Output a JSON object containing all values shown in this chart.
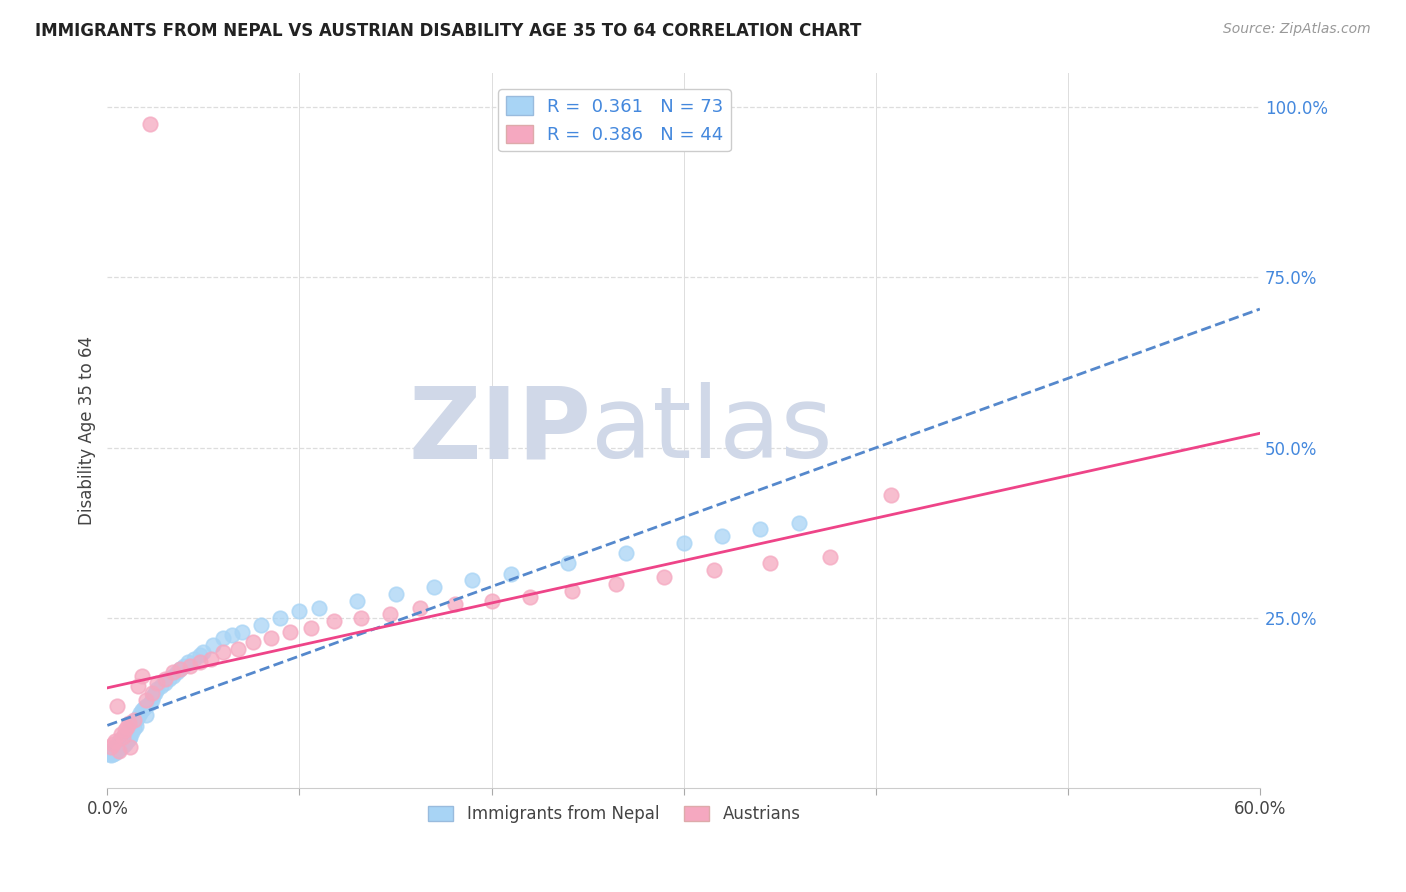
{
  "title": "IMMIGRANTS FROM NEPAL VS AUSTRIAN DISABILITY AGE 35 TO 64 CORRELATION CHART",
  "source": "Source: ZipAtlas.com",
  "ylabel": "Disability Age 35 to 64",
  "xmin": 0.0,
  "xmax": 0.6,
  "ymin": 0.0,
  "ymax": 1.05,
  "legend_label1": "R =  0.361   N = 73",
  "legend_label2": "R =  0.386   N = 44",
  "scatter_color1": "#A8D4F5",
  "scatter_color2": "#F5A8C0",
  "trendline_color1": "#5588CC",
  "trendline_color2": "#EE4488",
  "watermark_color": "#D0D8E8",
  "background_color": "#FFFFFF",
  "grid_color": "#DDDDDD",
  "nepal_x": [
    0.001,
    0.002,
    0.002,
    0.003,
    0.003,
    0.003,
    0.004,
    0.004,
    0.004,
    0.005,
    0.005,
    0.005,
    0.006,
    0.006,
    0.006,
    0.007,
    0.007,
    0.008,
    0.008,
    0.009,
    0.009,
    0.01,
    0.01,
    0.011,
    0.011,
    0.012,
    0.012,
    0.013,
    0.013,
    0.014,
    0.015,
    0.015,
    0.016,
    0.017,
    0.018,
    0.019,
    0.02,
    0.02,
    0.022,
    0.023,
    0.024,
    0.025,
    0.026,
    0.028,
    0.03,
    0.032,
    0.034,
    0.036,
    0.038,
    0.04,
    0.042,
    0.045,
    0.048,
    0.05,
    0.055,
    0.06,
    0.065,
    0.07,
    0.08,
    0.09,
    0.1,
    0.11,
    0.13,
    0.15,
    0.17,
    0.19,
    0.21,
    0.24,
    0.27,
    0.3,
    0.32,
    0.34,
    0.36
  ],
  "nepal_y": [
    0.05,
    0.048,
    0.052,
    0.055,
    0.05,
    0.058,
    0.052,
    0.057,
    0.06,
    0.055,
    0.06,
    0.062,
    0.058,
    0.065,
    0.07,
    0.06,
    0.068,
    0.062,
    0.075,
    0.065,
    0.078,
    0.07,
    0.08,
    0.072,
    0.085,
    0.075,
    0.09,
    0.082,
    0.095,
    0.088,
    0.092,
    0.1,
    0.105,
    0.11,
    0.115,
    0.118,
    0.12,
    0.108,
    0.125,
    0.13,
    0.135,
    0.14,
    0.145,
    0.15,
    0.155,
    0.16,
    0.165,
    0.17,
    0.175,
    0.18,
    0.185,
    0.19,
    0.195,
    0.2,
    0.21,
    0.22,
    0.225,
    0.23,
    0.24,
    0.25,
    0.26,
    0.265,
    0.275,
    0.285,
    0.295,
    0.305,
    0.315,
    0.33,
    0.345,
    0.36,
    0.37,
    0.38,
    0.39
  ],
  "austria_x": [
    0.002,
    0.003,
    0.004,
    0.005,
    0.006,
    0.007,
    0.008,
    0.009,
    0.01,
    0.011,
    0.012,
    0.014,
    0.016,
    0.018,
    0.02,
    0.023,
    0.026,
    0.03,
    0.034,
    0.038,
    0.043,
    0.048,
    0.054,
    0.06,
    0.068,
    0.076,
    0.085,
    0.095,
    0.106,
    0.118,
    0.132,
    0.147,
    0.163,
    0.181,
    0.2,
    0.22,
    0.242,
    0.265,
    0.29,
    0.316,
    0.345,
    0.376,
    0.408,
    0.022
  ],
  "austria_y": [
    0.06,
    0.065,
    0.07,
    0.12,
    0.055,
    0.08,
    0.075,
    0.085,
    0.09,
    0.095,
    0.06,
    0.1,
    0.15,
    0.165,
    0.13,
    0.14,
    0.155,
    0.16,
    0.17,
    0.175,
    0.18,
    0.185,
    0.19,
    0.2,
    0.205,
    0.215,
    0.22,
    0.23,
    0.235,
    0.245,
    0.25,
    0.255,
    0.265,
    0.27,
    0.275,
    0.28,
    0.29,
    0.3,
    0.31,
    0.32,
    0.33,
    0.34,
    0.43,
    0.975
  ]
}
